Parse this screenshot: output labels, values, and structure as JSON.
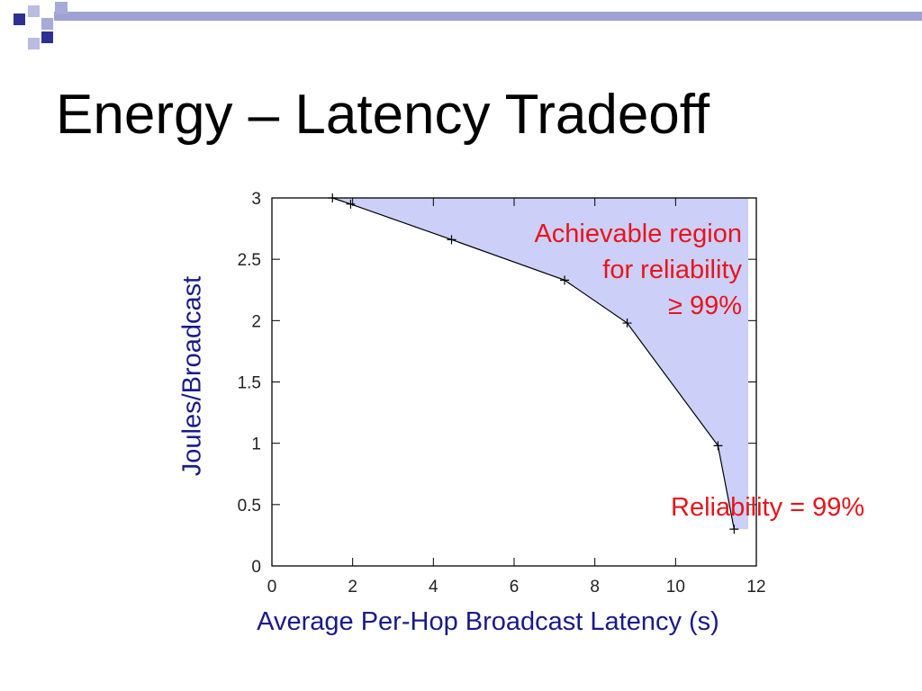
{
  "slide": {
    "title": "Energy – Latency Tradeoff"
  },
  "theme": {
    "deco_color": "#2e3192",
    "deco_light": "#a7a9d6",
    "deco_bar": "#9fa2d2",
    "label_color": "#1a1a8c",
    "annotation_color": "#e8141b",
    "region_fill": "#cccff7"
  },
  "chart_data": {
    "type": "line",
    "xlabel": "Average Per-Hop Broadcast Latency (s)",
    "ylabel": "Joules/Broadcast",
    "xlim": [
      0,
      12
    ],
    "ylim": [
      0,
      3
    ],
    "xticks": [
      0,
      2,
      4,
      6,
      8,
      10,
      12
    ],
    "yticks": [
      0,
      0.5,
      1,
      1.5,
      2,
      2.5,
      3
    ],
    "grid": false,
    "series": [
      {
        "x": [
          1.5,
          1.95,
          4.45,
          7.25,
          8.8,
          11.05,
          11.45
        ],
        "y": [
          3.0,
          2.95,
          2.66,
          2.33,
          1.98,
          0.98,
          0.3
        ]
      }
    ],
    "shaded_region": {
      "x": [
        1.5,
        1.95,
        4.45,
        7.25,
        8.8,
        11.05,
        11.45,
        11.8,
        11.8,
        1.5
      ],
      "y": [
        3.0,
        2.95,
        2.66,
        2.33,
        1.98,
        0.98,
        0.3,
        0.3,
        3.0,
        3.0
      ]
    },
    "annotations": {
      "region_lines": [
        "Achievable region",
        "for reliability",
        "≥ 99%"
      ],
      "curve_label": "Reliability = 99%"
    }
  }
}
